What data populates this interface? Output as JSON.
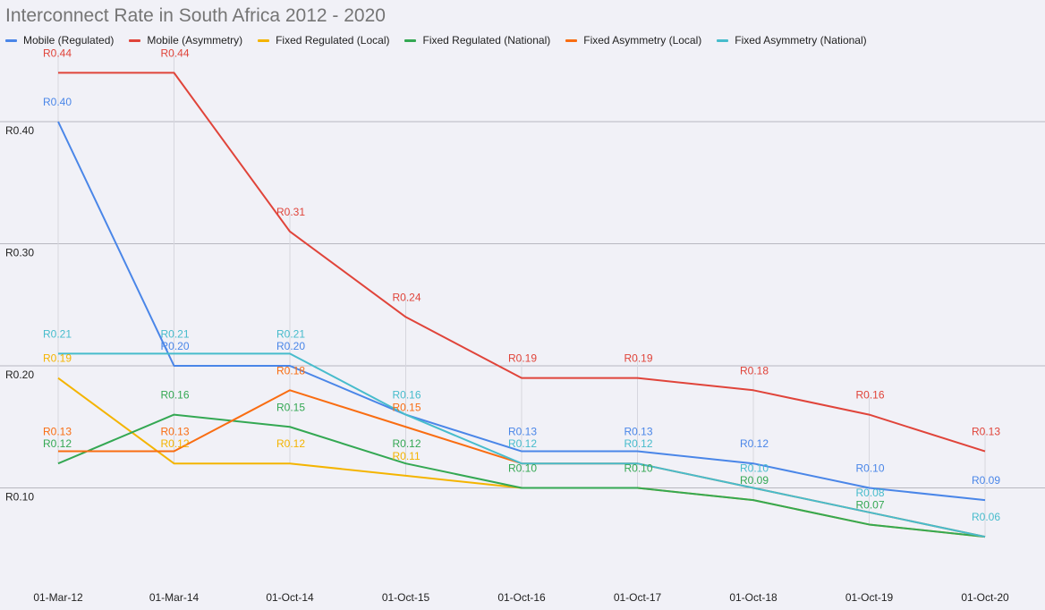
{
  "chart_data": {
    "type": "line",
    "title": "Interconnect Rate in South Africa 2012 - 2020",
    "xlabel": "",
    "ylabel": "",
    "categories": [
      "01-Mar-12",
      "01-Mar-14",
      "01-Oct-14",
      "01-Oct-15",
      "01-Oct-16",
      "01-Oct-17",
      "01-Oct-18",
      "01-Oct-19",
      "01-Oct-20"
    ],
    "yticks": [
      0.1,
      0.2,
      0.3,
      0.4
    ],
    "ytick_labels": [
      "R0.10",
      "R0.20",
      "R0.30",
      "R0.40"
    ],
    "ylim": [
      0.0,
      0.45
    ],
    "grid": true,
    "legend_position": "top-left",
    "series": [
      {
        "name": "Mobile (Regulated)",
        "color": "#4a86e8",
        "values": [
          0.4,
          0.2,
          0.2,
          0.16,
          0.13,
          0.13,
          0.12,
          0.1,
          0.09
        ],
        "labels": [
          "R0.40",
          "R0.20",
          "R0.20",
          "",
          "R0.13",
          "R0.13",
          "R0.12",
          "R0.10",
          "R0.09"
        ]
      },
      {
        "name": "Mobile (Asymmetry)",
        "color": "#e0443a",
        "values": [
          0.44,
          0.44,
          0.31,
          0.24,
          0.19,
          0.19,
          0.18,
          0.16,
          0.13
        ],
        "labels": [
          "R0.44",
          "R0.44",
          "R0.31",
          "R0.24",
          "R0.19",
          "R0.19",
          "R0.18",
          "R0.16",
          "R0.13"
        ]
      },
      {
        "name": "Fixed Regulated (Local)",
        "color": "#f4b400",
        "values": [
          0.19,
          0.12,
          0.12,
          0.11,
          0.1,
          0.1,
          0.09,
          0.07,
          0.06
        ],
        "labels": [
          "R0.19",
          "R0.12",
          "R0.12",
          "R0.11",
          "",
          "",
          "",
          "",
          ""
        ]
      },
      {
        "name": "Fixed Regulated (National)",
        "color": "#34a853",
        "values": [
          0.12,
          0.16,
          0.15,
          0.12,
          0.1,
          0.1,
          0.09,
          0.07,
          0.06
        ],
        "labels": [
          "R0.12",
          "R0.16",
          "R0.15",
          "R0.12",
          "R0.10",
          "R0.10",
          "R0.09",
          "R0.07",
          ""
        ]
      },
      {
        "name": "Fixed Asymmetry (Local)",
        "color": "#f96d12",
        "values": [
          0.13,
          0.13,
          0.18,
          0.15,
          0.12,
          0.12,
          0.1,
          0.08,
          0.06
        ],
        "labels": [
          "R0.13",
          "R0.13",
          "R0.18",
          "R0.15",
          "",
          "",
          "",
          "",
          ""
        ]
      },
      {
        "name": "Fixed Asymmetry (National)",
        "color": "#47bccc",
        "values": [
          0.21,
          0.21,
          0.21,
          0.16,
          0.12,
          0.12,
          0.1,
          0.08,
          0.06
        ],
        "labels": [
          "R0.21",
          "R0.21",
          "R0.21",
          "R0.16",
          "R0.12",
          "R0.12",
          "R0.10",
          "R0.08",
          "R0.06"
        ]
      }
    ]
  }
}
